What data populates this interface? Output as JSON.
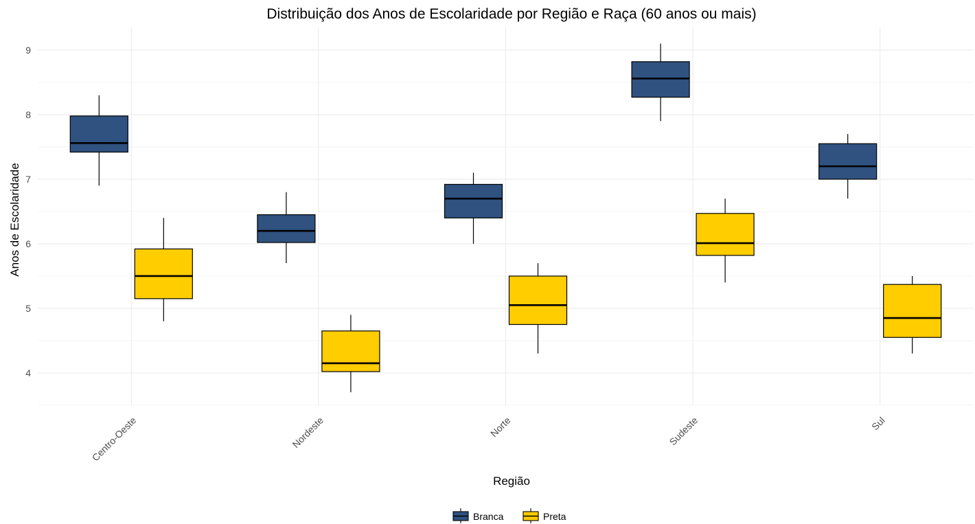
{
  "chart_data": {
    "type": "boxplot",
    "title": "Distribuição dos Anos de Escolaridade por Região e Raça (60 anos ou mais)",
    "xlabel": "Região",
    "ylabel": "Anos de Escolaridade",
    "categories": [
      "Centro-Oeste",
      "Nordeste",
      "Norte",
      "Sudeste",
      "Sul"
    ],
    "ylim": [
      3.5,
      9.35
    ],
    "yticks": [
      4,
      5,
      6,
      7,
      8,
      9
    ],
    "grid": true,
    "legend_position": "bottom",
    "series": [
      {
        "name": "Branca",
        "color": "#2f5280",
        "boxes": [
          {
            "category": "Centro-Oeste",
            "min": 6.9,
            "q1": 7.42,
            "median": 7.56,
            "q3": 7.98,
            "max": 8.3
          },
          {
            "category": "Nordeste",
            "min": 5.7,
            "q1": 6.02,
            "median": 6.2,
            "q3": 6.45,
            "max": 6.8
          },
          {
            "category": "Norte",
            "min": 6.0,
            "q1": 6.4,
            "median": 6.7,
            "q3": 6.92,
            "max": 7.1
          },
          {
            "category": "Sudeste",
            "min": 7.9,
            "q1": 8.27,
            "median": 8.56,
            "q3": 8.82,
            "max": 9.1
          },
          {
            "category": "Sul",
            "min": 6.7,
            "q1": 7.0,
            "median": 7.2,
            "q3": 7.55,
            "max": 7.7
          }
        ]
      },
      {
        "name": "Preta",
        "color": "#ffcd00",
        "boxes": [
          {
            "category": "Centro-Oeste",
            "min": 4.8,
            "q1": 5.15,
            "median": 5.5,
            "q3": 5.92,
            "max": 6.4
          },
          {
            "category": "Nordeste",
            "min": 3.7,
            "q1": 4.02,
            "median": 4.15,
            "q3": 4.65,
            "max": 4.9
          },
          {
            "category": "Norte",
            "min": 4.3,
            "q1": 4.75,
            "median": 5.05,
            "q3": 5.5,
            "max": 5.7
          },
          {
            "category": "Sudeste",
            "min": 5.4,
            "q1": 5.82,
            "median": 6.01,
            "q3": 6.47,
            "max": 6.7
          },
          {
            "category": "Sul",
            "min": 4.3,
            "q1": 4.55,
            "median": 4.85,
            "q3": 5.37,
            "max": 5.5
          }
        ]
      }
    ]
  }
}
